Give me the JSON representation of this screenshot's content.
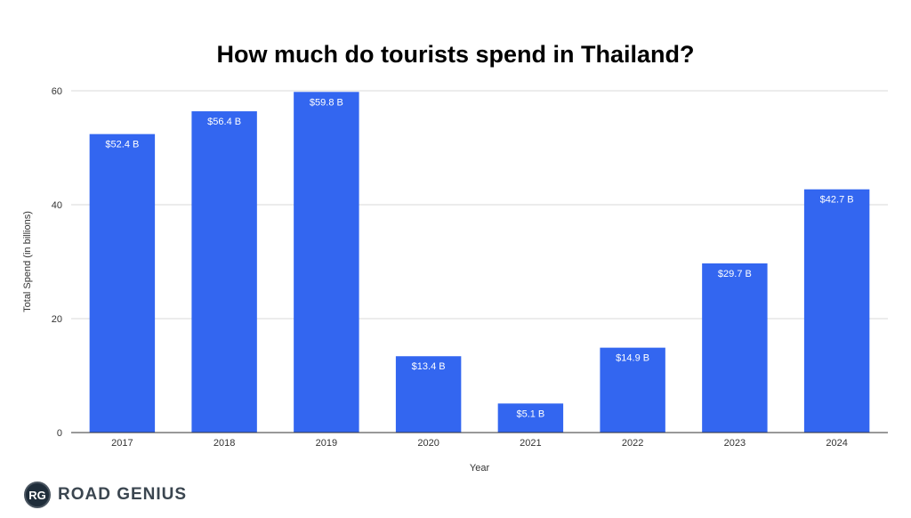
{
  "chart_data": {
    "type": "bar",
    "title": "How much do tourists spend in Thailand?",
    "xlabel": "Year",
    "ylabel": "Total Spend (in billions)",
    "categories": [
      "2017",
      "2018",
      "2019",
      "2020",
      "2021",
      "2022",
      "2023",
      "2024"
    ],
    "values": [
      52.4,
      56.4,
      59.8,
      13.4,
      5.1,
      14.9,
      29.7,
      42.7
    ],
    "data_labels": [
      "$52.4 B",
      "$56.4 B",
      "$59.8 B",
      "$13.4 B",
      "$5.1 B",
      "$14.9 B",
      "$29.7 B",
      "$42.7 B"
    ],
    "ylim": [
      0,
      60
    ],
    "yticks": [
      "0",
      "20",
      "40",
      "60"
    ],
    "grid": true,
    "bar_color": "#3366f0",
    "label_color": "#ffffff"
  },
  "brand": {
    "badge": "RG",
    "name": "ROAD GENIUS",
    "color": "#1f2d3a"
  }
}
